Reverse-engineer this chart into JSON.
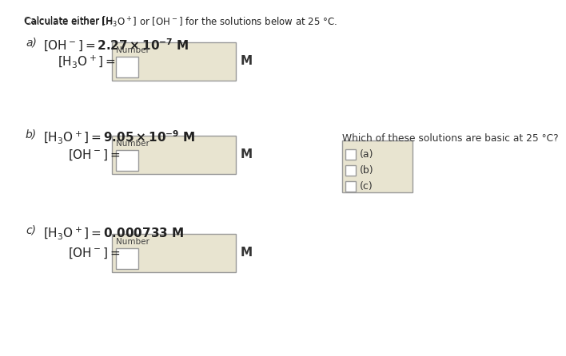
{
  "bg_color": "#ffffff",
  "box_fill": "#e8e4d0",
  "box_border": "#999999",
  "title": "Calculate either [H₃O⁺] or [OH⁻] for the solutions below at 25 °C.",
  "part_a_given_pre": "a)   ",
  "part_a_given": "[OH⁻] = 2.27 × 10⁻⁷ M",
  "part_a_find": "[H₃O⁺] =",
  "part_b_given_pre": "b)   ",
  "part_b_given": "[H₃O⁺] = 9.05 × 10⁻⁹ M",
  "part_b_find": "[OH⁻] =",
  "part_c_given_pre": "c)   ",
  "part_c_given": "[H₃O⁺] = 0.000733 M",
  "part_c_find": "[OH⁻] =",
  "side_q": "Which of these solutions are basic at 25 °C?",
  "checkboxes": [
    "(a)",
    "(b)",
    "(c)"
  ],
  "number_label": "Number",
  "M_label": "M"
}
